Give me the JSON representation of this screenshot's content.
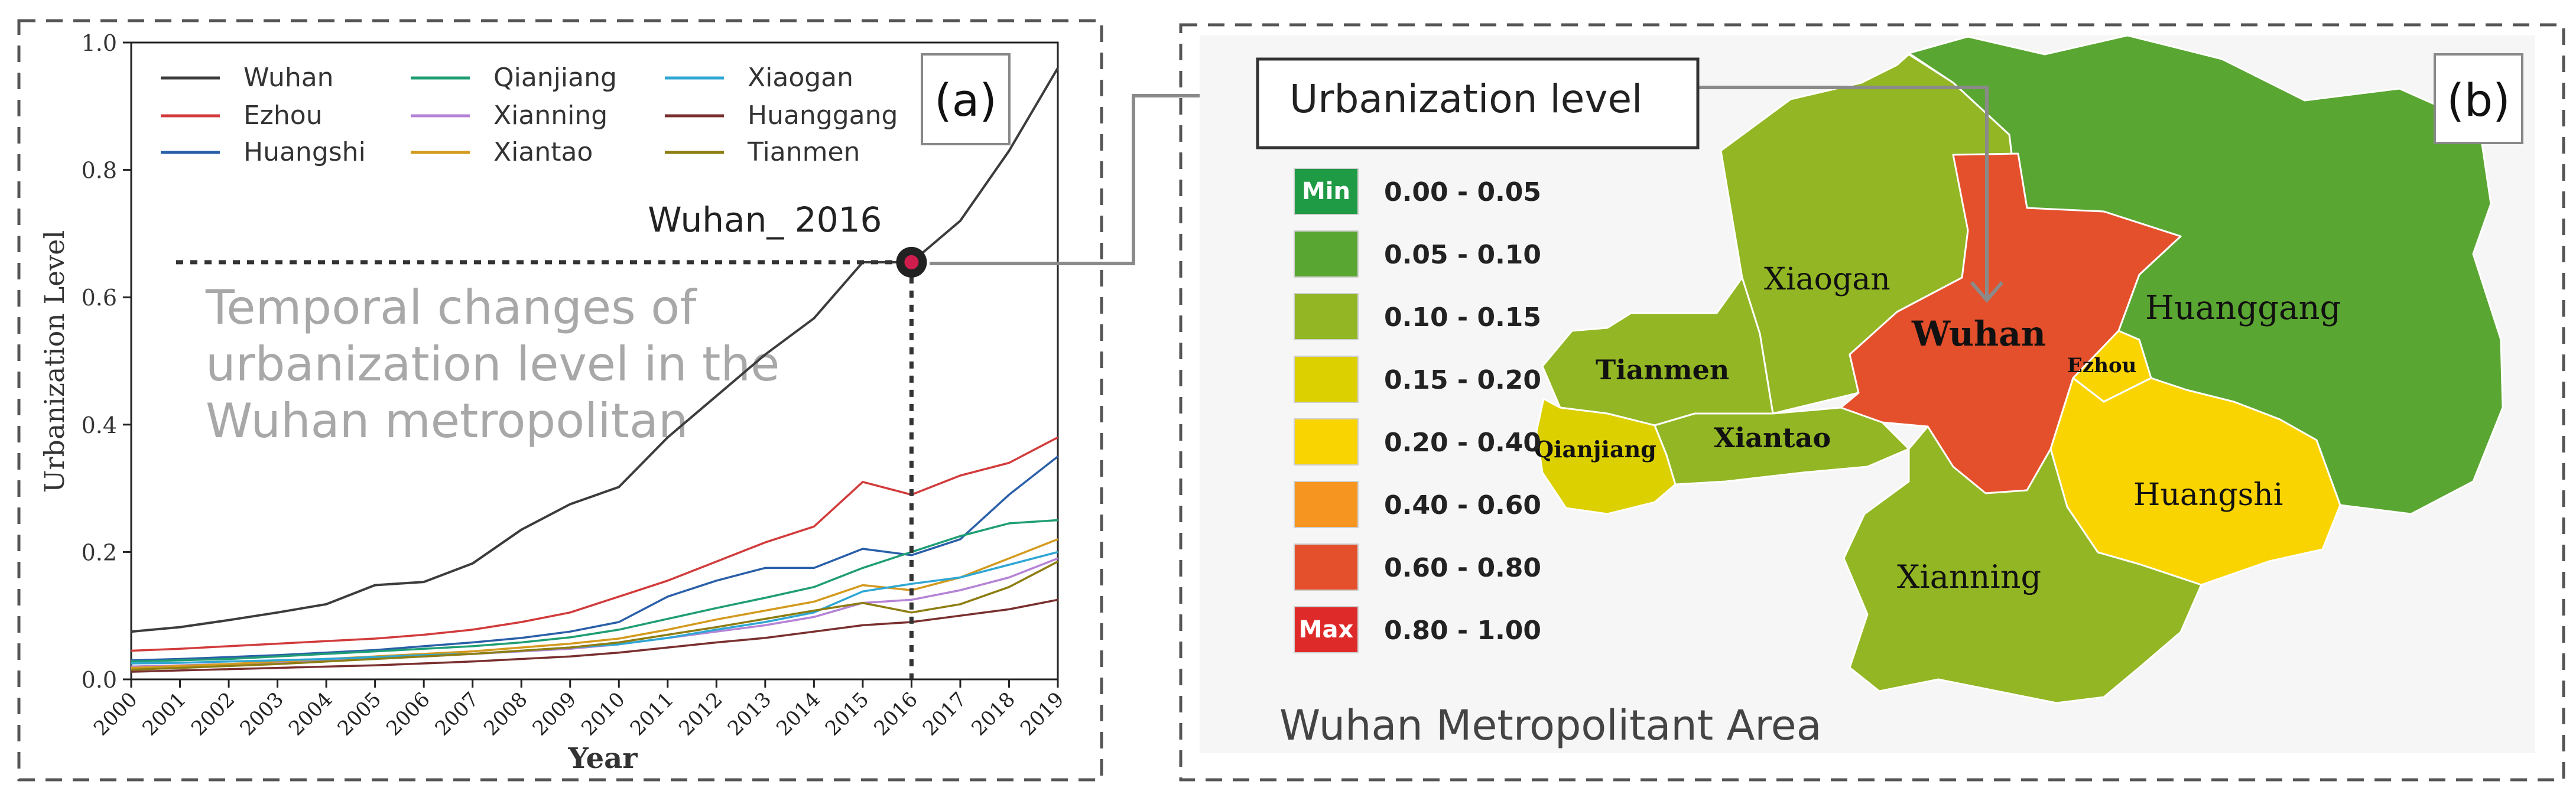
{
  "colors": {
    "Wuhan": "#3c3c3c",
    "Ezhou": "#d23b3b",
    "Huangshi": "#2a5fa8",
    "Qianjiang": "#1f9e74",
    "Xianning": "#b583d6",
    "Xiantao": "#d39a1e",
    "Xiaogan": "#2fa7d4",
    "Huanggang": "#7a2f2f",
    "Tianmen": "#8d7d12",
    "highlight_dot": "#d11d4e",
    "annotation_text": "#a8a8a8",
    "map_level_min": "#1f9a45",
    "map_level_005": "#5aa632",
    "map_level_010": "#93b624",
    "map_level_015": "#dcd000",
    "map_level_020": "#fad400",
    "map_level_040": "#f6951f",
    "map_level_060": "#e4502c",
    "map_level_max": "#df2a2a"
  },
  "panel_a": {
    "label": "(a)",
    "annotation_point": "Wuhan_ 2016",
    "annotation_text": [
      "Temporal changes of",
      "urbanization level in the",
      "Wuhan metropolitan"
    ]
  },
  "chart_data": {
    "type": "line",
    "title": "",
    "xlabel": "Year",
    "ylabel": "Urbanization Level",
    "ylim": [
      0.0,
      1.0
    ],
    "xlim": [
      2000,
      2019
    ],
    "yticks": [
      "0.0",
      "0.2",
      "0.4",
      "0.6",
      "0.8",
      "1.0"
    ],
    "x": [
      2000,
      2001,
      2002,
      2003,
      2004,
      2005,
      2006,
      2007,
      2008,
      2009,
      2010,
      2011,
      2012,
      2013,
      2014,
      2015,
      2016,
      2017,
      2018,
      2019
    ],
    "legend_position": "top-left",
    "highlight": {
      "series": "Wuhan",
      "x": 2016,
      "y": 0.655
    },
    "series": [
      {
        "name": "Wuhan",
        "values": [
          0.075,
          0.082,
          0.093,
          0.105,
          0.118,
          0.148,
          0.153,
          0.182,
          0.235,
          0.275,
          0.302,
          0.38,
          0.445,
          0.51,
          0.567,
          0.655,
          0.655,
          0.72,
          0.83,
          0.96
        ]
      },
      {
        "name": "Ezhou",
        "values": [
          0.045,
          0.048,
          0.052,
          0.056,
          0.06,
          0.064,
          0.07,
          0.078,
          0.09,
          0.105,
          0.13,
          0.155,
          0.185,
          0.215,
          0.24,
          0.31,
          0.29,
          0.32,
          0.34,
          0.38
        ]
      },
      {
        "name": "Huangshi",
        "values": [
          0.03,
          0.032,
          0.035,
          0.038,
          0.042,
          0.046,
          0.052,
          0.058,
          0.065,
          0.075,
          0.09,
          0.13,
          0.155,
          0.175,
          0.175,
          0.205,
          0.195,
          0.22,
          0.29,
          0.35
        ]
      },
      {
        "name": "Qianjiang",
        "values": [
          0.028,
          0.03,
          0.032,
          0.036,
          0.04,
          0.044,
          0.048,
          0.052,
          0.058,
          0.066,
          0.078,
          0.095,
          0.112,
          0.128,
          0.145,
          0.175,
          0.2,
          0.225,
          0.245,
          0.25
        ]
      },
      {
        "name": "Xianning",
        "values": [
          0.02,
          0.022,
          0.024,
          0.027,
          0.03,
          0.033,
          0.036,
          0.04,
          0.044,
          0.048,
          0.055,
          0.065,
          0.075,
          0.085,
          0.098,
          0.12,
          0.125,
          0.14,
          0.16,
          0.19
        ]
      },
      {
        "name": "Xiantao",
        "values": [
          0.018,
          0.021,
          0.024,
          0.028,
          0.032,
          0.036,
          0.04,
          0.044,
          0.05,
          0.056,
          0.064,
          0.078,
          0.094,
          0.108,
          0.122,
          0.148,
          0.14,
          0.16,
          0.19,
          0.22
        ]
      },
      {
        "name": "Xiaogan",
        "values": [
          0.025,
          0.026,
          0.028,
          0.03,
          0.032,
          0.035,
          0.038,
          0.04,
          0.045,
          0.05,
          0.055,
          0.065,
          0.078,
          0.09,
          0.105,
          0.138,
          0.15,
          0.16,
          0.18,
          0.2
        ]
      },
      {
        "name": "Huanggang",
        "values": [
          0.012,
          0.014,
          0.016,
          0.018,
          0.02,
          0.022,
          0.025,
          0.028,
          0.032,
          0.036,
          0.042,
          0.05,
          0.058,
          0.065,
          0.075,
          0.085,
          0.09,
          0.1,
          0.11,
          0.125
        ]
      },
      {
        "name": "Tianmen",
        "values": [
          0.015,
          0.018,
          0.021,
          0.024,
          0.028,
          0.032,
          0.036,
          0.04,
          0.045,
          0.05,
          0.058,
          0.07,
          0.082,
          0.095,
          0.108,
          0.12,
          0.105,
          0.118,
          0.145,
          0.185
        ]
      }
    ]
  },
  "panel_b": {
    "label": "(b)",
    "legend_title": "Urbanization level",
    "map_title": "Wuhan Metropolitant Area",
    "legend": [
      {
        "badge": "Min",
        "range": "0.00 - 0.05",
        "color": "#1f9a45"
      },
      {
        "badge": "",
        "range": "0.05 - 0.10",
        "color": "#5aa632"
      },
      {
        "badge": "",
        "range": "0.10 - 0.15",
        "color": "#93b624"
      },
      {
        "badge": "",
        "range": "0.15 - 0.20",
        "color": "#dcd000"
      },
      {
        "badge": "",
        "range": "0.20 - 0.40",
        "color": "#fad400"
      },
      {
        "badge": "",
        "range": "0.40 - 0.60",
        "color": "#f6951f"
      },
      {
        "badge": "",
        "range": "0.60 - 0.80",
        "color": "#e4502c"
      },
      {
        "badge": "Max",
        "range": "0.80 - 1.00",
        "color": "#df2a2a"
      }
    ],
    "regions": [
      {
        "name": "Wuhan",
        "level": "0.60 - 0.80"
      },
      {
        "name": "Huanggang",
        "level": "0.05 - 0.10"
      },
      {
        "name": "Xiaogan",
        "level": "0.10 - 0.15"
      },
      {
        "name": "Tianmen",
        "level": "0.10 - 0.15"
      },
      {
        "name": "Xiantao",
        "level": "0.10 - 0.15"
      },
      {
        "name": "Qianjiang",
        "level": "0.15 - 0.20"
      },
      {
        "name": "Ezhou",
        "level": "0.20 - 0.40"
      },
      {
        "name": "Huangshi",
        "level": "0.20 - 0.40"
      },
      {
        "name": "Xianning",
        "level": "0.10 - 0.15"
      }
    ]
  }
}
